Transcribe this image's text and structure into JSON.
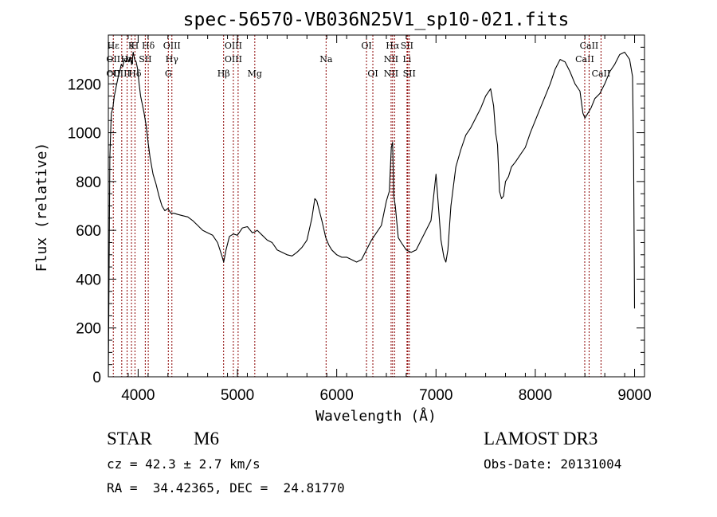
{
  "chart_data": {
    "type": "line",
    "title": "spec-56570-VB036N25V1_sp10-021.fits",
    "xlabel": "Wavelength (Å)",
    "ylabel": "Flux (relative)",
    "xlim": [
      3700,
      9100
    ],
    "ylim": [
      0,
      1400
    ],
    "x_ticks": [
      4000,
      5000,
      6000,
      7000,
      8000,
      9000
    ],
    "y_ticks": [
      0,
      200,
      400,
      600,
      800,
      1000,
      1200
    ],
    "grid": false,
    "series": [
      {
        "color": "#000000",
        "x": [
          3700,
          3715,
          3730,
          3745,
          3760,
          3775,
          3790,
          3800,
          3815,
          3830,
          3845,
          3860,
          3875,
          3890,
          3905,
          3920,
          3935,
          3950,
          3965,
          3980,
          3995,
          4010,
          4025,
          4040,
          4060,
          4080,
          4100,
          4120,
          4150,
          4180,
          4210,
          4240,
          4270,
          4300,
          4330,
          4360,
          4400,
          4450,
          4500,
          4550,
          4600,
          4650,
          4700,
          4750,
          4800,
          4840,
          4862,
          4885,
          4920,
          4960,
          5000,
          5050,
          5100,
          5150,
          5180,
          5200,
          5250,
          5300,
          5350,
          5400,
          5450,
          5500,
          5550,
          5600,
          5650,
          5700,
          5750,
          5780,
          5800,
          5850,
          5890,
          5920,
          5950,
          6000,
          6050,
          6100,
          6150,
          6200,
          6250,
          6300,
          6350,
          6400,
          6450,
          6500,
          6530,
          6550,
          6563,
          6575,
          6590,
          6620,
          6650,
          6700,
          6750,
          6800,
          6850,
          6900,
          6950,
          7000,
          7050,
          7080,
          7100,
          7120,
          7150,
          7200,
          7250,
          7300,
          7350,
          7400,
          7450,
          7500,
          7550,
          7580,
          7600,
          7620,
          7640,
          7660,
          7680,
          7700,
          7730,
          7760,
          7800,
          7850,
          7900,
          7950,
          8000,
          8050,
          8100,
          8150,
          8200,
          8250,
          8300,
          8350,
          8400,
          8450,
          8480,
          8500,
          8530,
          8560,
          8600,
          8650,
          8700,
          8750,
          8800,
          8850,
          8900,
          8950,
          8980,
          8990,
          9000
        ],
        "y": [
          0,
          900,
          1080,
          1100,
          1150,
          1180,
          1210,
          1230,
          1250,
          1280,
          1270,
          1300,
          1290,
          1310,
          1290,
          1310,
          1280,
          1330,
          1300,
          1290,
          1260,
          1200,
          1150,
          1120,
          1080,
          1030,
          960,
          900,
          830,
          790,
          740,
          700,
          680,
          690,
          670,
          670,
          665,
          660,
          655,
          640,
          620,
          600,
          590,
          580,
          550,
          500,
          470,
          520,
          575,
          585,
          580,
          610,
          615,
          590,
          595,
          600,
          580,
          560,
          550,
          520,
          510,
          500,
          495,
          510,
          530,
          560,
          650,
          730,
          720,
          640,
          570,
          540,
          520,
          500,
          490,
          490,
          480,
          470,
          480,
          520,
          560,
          590,
          620,
          720,
          760,
          940,
          960,
          740,
          700,
          570,
          550,
          520,
          510,
          520,
          560,
          600,
          640,
          830,
          560,
          490,
          470,
          520,
          700,
          860,
          930,
          990,
          1020,
          1060,
          1100,
          1150,
          1180,
          1110,
          1000,
          950,
          760,
          730,
          740,
          800,
          820,
          860,
          880,
          910,
          940,
          1000,
          1050,
          1100,
          1150,
          1200,
          1260,
          1300,
          1290,
          1250,
          1200,
          1170,
          1080,
          1060,
          1080,
          1100,
          1140,
          1160,
          1200,
          1250,
          1280,
          1320,
          1330,
          1300,
          1230,
          900,
          280
        ]
      }
    ],
    "lines": [
      {
        "x": 3750,
        "labels": [
          "Hε",
          "OII",
          "OII"
        ]
      },
      {
        "x": 3835,
        "labels": [
          "",
          "",
          "OIII"
        ]
      },
      {
        "x": 3889,
        "labels": [
          "",
          "Hη",
          ""
        ]
      },
      {
        "x": 3933,
        "labels": [
          "K",
          "",
          ""
        ]
      },
      {
        "x": 3968,
        "labels": [
          "H",
          "",
          "Hδ"
        ]
      },
      {
        "x": 4072,
        "labels": [
          "",
          "SII",
          ""
        ]
      },
      {
        "x": 4102,
        "labels": [
          "Hδ",
          "",
          ""
        ]
      },
      {
        "x": 4304,
        "labels": [
          "",
          "",
          "G"
        ]
      },
      {
        "x": 4340,
        "labels": [
          "OIII",
          "Hγ",
          ""
        ]
      },
      {
        "x": 4861,
        "labels": [
          "",
          "",
          "Hβ"
        ]
      },
      {
        "x": 4959,
        "labels": [
          "OIII",
          "OIII",
          ""
        ]
      },
      {
        "x": 5007,
        "labels": [
          "",
          "",
          ""
        ]
      },
      {
        "x": 5175,
        "labels": [
          "",
          "",
          "Mg"
        ]
      },
      {
        "x": 5893,
        "labels": [
          "",
          "Na",
          ""
        ]
      },
      {
        "x": 6300,
        "labels": [
          "OI",
          "",
          ""
        ]
      },
      {
        "x": 6364,
        "labels": [
          "",
          "",
          "OI"
        ]
      },
      {
        "x": 6548,
        "labels": [
          "",
          "NII",
          "NII"
        ]
      },
      {
        "x": 6563,
        "labels": [
          "Hα",
          "",
          ""
        ]
      },
      {
        "x": 6583,
        "labels": [
          "",
          "",
          ""
        ]
      },
      {
        "x": 6708,
        "labels": [
          "SII",
          "Li",
          ""
        ]
      },
      {
        "x": 6716,
        "labels": [
          "",
          "",
          ""
        ]
      },
      {
        "x": 6731,
        "labels": [
          "",
          "",
          "SII"
        ]
      },
      {
        "x": 8498,
        "labels": [
          "",
          "CaII",
          ""
        ]
      },
      {
        "x": 8542,
        "labels": [
          "CaII",
          "",
          ""
        ]
      },
      {
        "x": 8662,
        "labels": [
          "",
          "",
          "CaII"
        ]
      }
    ]
  },
  "info": {
    "object_class": "STAR",
    "subclass": "M6",
    "survey": "LAMOST DR3",
    "redshift": "cz = 42.3 ± 2.7 km/s",
    "obs_date": "Obs-Date: 20131004",
    "coords": "RA =  34.42365, DEC =  24.81770"
  },
  "colors": {
    "spectrum": "#000000",
    "line_marker": "#8b0000",
    "axes": "#000000"
  }
}
